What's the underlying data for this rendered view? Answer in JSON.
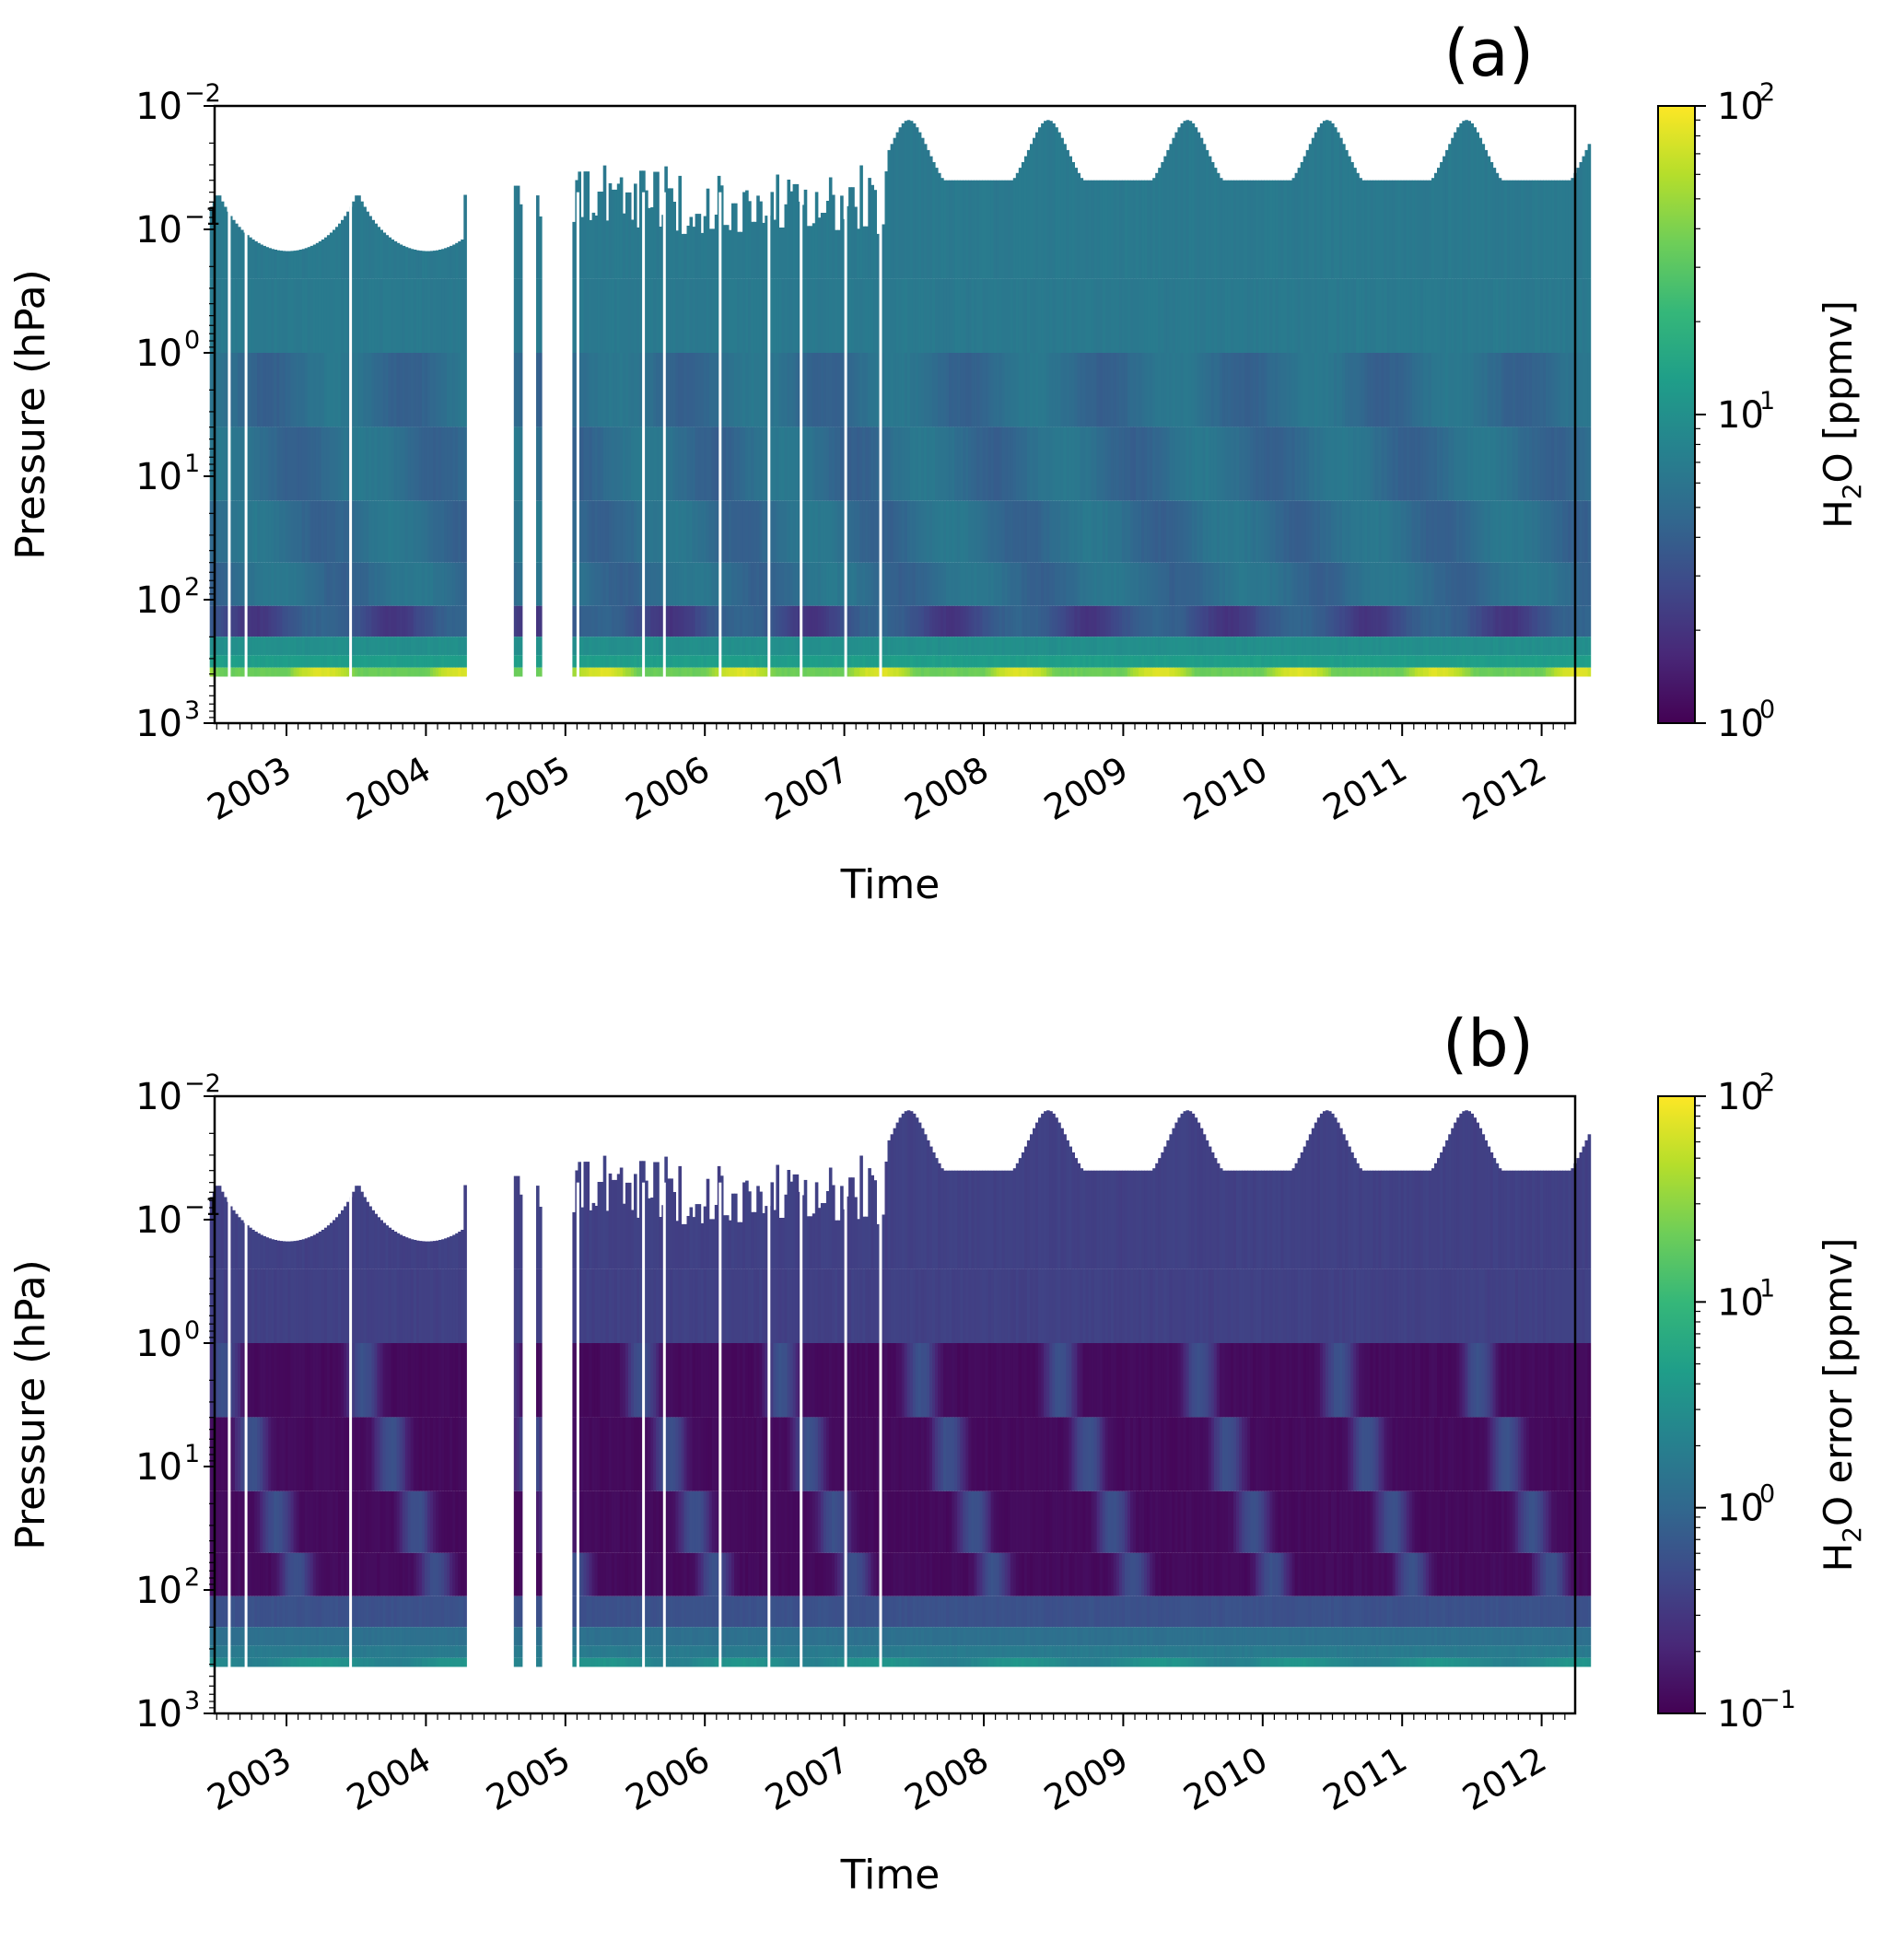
{
  "chart_data": [
    {
      "type": "heatmap",
      "panel_label": "(a)",
      "xlabel": "Time",
      "ylabel": "Pressure (hPa)",
      "x_tick_labels": [
        "2003",
        "2004",
        "2005",
        "2006",
        "2007",
        "2008",
        "2009",
        "2010",
        "2011",
        "2012"
      ],
      "x_range": [
        "2002-07",
        "2012-04"
      ],
      "y_scale": "log",
      "y_range_hPa": [
        0.01,
        1000
      ],
      "y_ticks": [
        {
          "base": "10",
          "exp": "−2",
          "value": 0.01
        },
        {
          "base": "10",
          "exp": "−1",
          "value": 0.1
        },
        {
          "base": "10",
          "exp": "0",
          "value": 1
        },
        {
          "base": "10",
          "exp": "1",
          "value": 10
        },
        {
          "base": "10",
          "exp": "2",
          "value": 100
        },
        {
          "base": "10",
          "exp": "3",
          "value": 1000
        }
      ],
      "colorbar": {
        "label_main": "H",
        "label_sub": "2",
        "label_rest": "O [ppmv]",
        "scale": "log",
        "range": [
          1,
          100
        ],
        "colormap": "viridis",
        "ticks": [
          {
            "base": "10",
            "exp": "2",
            "value": 100
          },
          {
            "base": "10",
            "exp": "1",
            "value": 10
          },
          {
            "base": "10",
            "exp": "0",
            "value": 1
          }
        ]
      },
      "data_gaps": [
        [
          "2004-04",
          "2005-01"
        ]
      ],
      "approx_values_ppmv": {
        "upper_stratosphere": 6.5,
        "lower_stratosphere": 4.5,
        "tropopause_region": 30,
        "near_surface_boundary": 100
      }
    },
    {
      "type": "heatmap",
      "panel_label": "(b)",
      "xlabel": "Time",
      "ylabel": "Pressure (hPa)",
      "x_tick_labels": [
        "2003",
        "2004",
        "2005",
        "2006",
        "2007",
        "2008",
        "2009",
        "2010",
        "2011",
        "2012"
      ],
      "x_range": [
        "2002-07",
        "2012-04"
      ],
      "y_scale": "log",
      "y_range_hPa": [
        0.01,
        1000
      ],
      "y_ticks": [
        {
          "base": "10",
          "exp": "−2",
          "value": 0.01
        },
        {
          "base": "10",
          "exp": "−1",
          "value": 0.1
        },
        {
          "base": "10",
          "exp": "0",
          "value": 1
        },
        {
          "base": "10",
          "exp": "1",
          "value": 10
        },
        {
          "base": "10",
          "exp": "2",
          "value": 100
        },
        {
          "base": "10",
          "exp": "3",
          "value": 1000
        }
      ],
      "colorbar": {
        "label_main": "H",
        "label_sub": "2",
        "label_rest": "O error [ppmv]",
        "scale": "log",
        "range": [
          0.1,
          100
        ],
        "colormap": "viridis",
        "ticks": [
          {
            "base": "10",
            "exp": "2",
            "value": 100
          },
          {
            "base": "10",
            "exp": "1",
            "value": 10
          },
          {
            "base": "10",
            "exp": "0",
            "value": 1
          },
          {
            "base": "10",
            "exp": "−1",
            "value": 0.1
          }
        ]
      },
      "data_gaps": [
        [
          "2004-04",
          "2005-01"
        ]
      ],
      "approx_values_ppmv": {
        "upper_stratosphere": 0.4,
        "middle_stratosphere": 0.12,
        "lower_stratosphere": 0.5,
        "near_surface_boundary": 3
      }
    }
  ]
}
